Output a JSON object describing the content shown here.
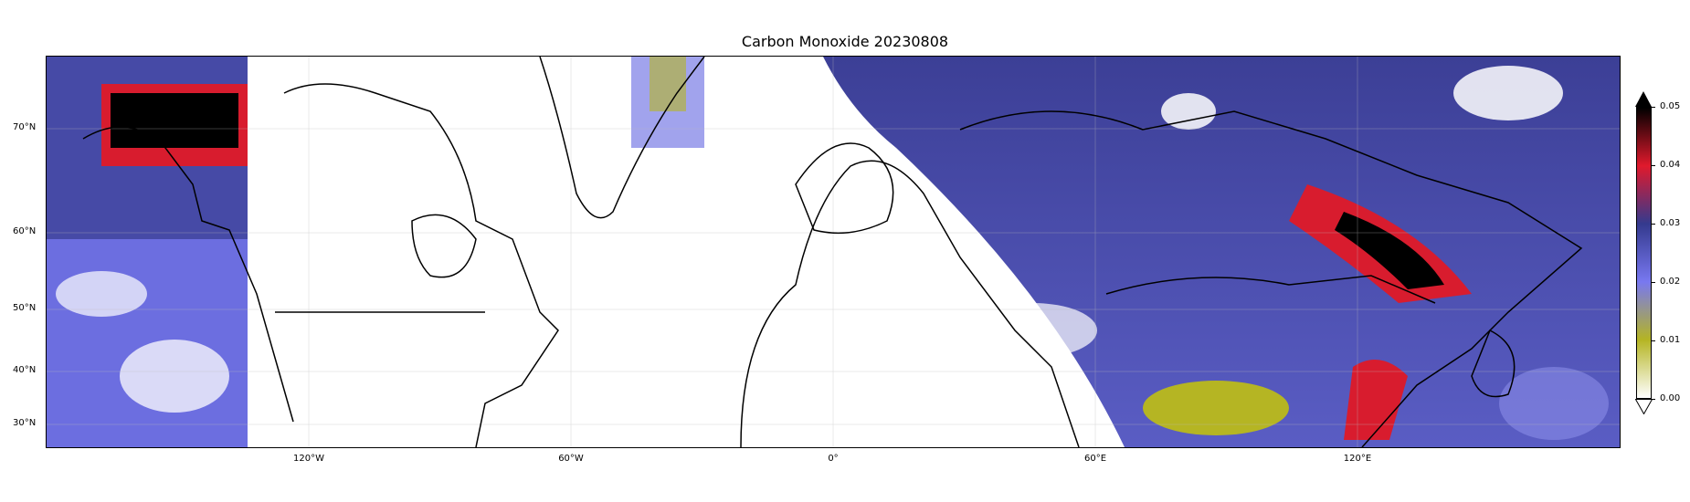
{
  "title": "Carbon Monoxide 20230808",
  "map": {
    "projection": "PlateCarree",
    "lon_range": [
      -170,
      190
    ],
    "lat_range": [
      26,
      79
    ],
    "gridlines": true,
    "lat_labels": [
      "70°N",
      "60°N",
      "50°N",
      "40°N",
      "30°N"
    ],
    "lon_labels": [
      "120°W",
      "60°W",
      "0°",
      "60°E",
      "120°E"
    ]
  },
  "colorbar": {
    "variable": "Carbon Monoxide",
    "min": 0.0,
    "max": 0.05,
    "extend": "both",
    "tick_labels": [
      "0.05",
      "0.04",
      "0.03",
      "0.02",
      "0.01",
      "0.00"
    ],
    "colors": [
      "#ffffff",
      "#b5b523",
      "#7878f0",
      "#343a8e",
      "#e0192c",
      "#000000"
    ]
  }
}
